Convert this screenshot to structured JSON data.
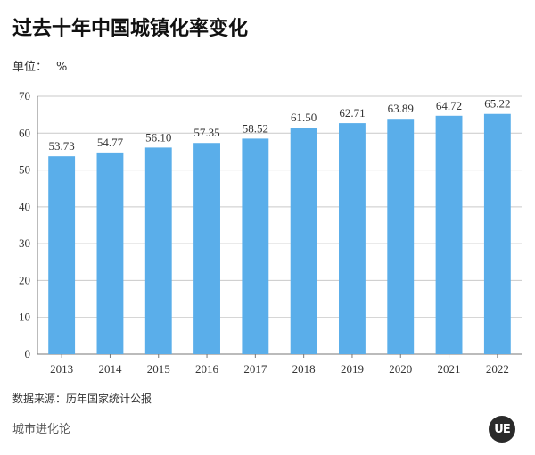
{
  "header": {
    "title": "过去十年中国城镇化率变化",
    "unit_label": "单位：",
    "unit_value": "%"
  },
  "footer": {
    "source": "数据来源：历年国家统计公报",
    "brand": "城市进化论",
    "logo_text": "UE"
  },
  "colors": {
    "bar": "#5aaeea",
    "grid": "#c9c9c9",
    "axis": "#777777"
  },
  "chart_data": {
    "type": "bar",
    "title": "过去十年中国城镇化率变化",
    "xlabel": "",
    "ylabel": "",
    "categories": [
      "2013",
      "2014",
      "2015",
      "2016",
      "2017",
      "2018",
      "2019",
      "2020",
      "2021",
      "2022"
    ],
    "values": [
      53.73,
      54.77,
      56.1,
      57.35,
      58.52,
      61.5,
      62.71,
      63.89,
      64.72,
      65.22
    ],
    "value_labels": [
      "53.73",
      "54.77",
      "56.10",
      "57.35",
      "58.52",
      "61.50",
      "62.71",
      "63.89",
      "64.72",
      "65.22"
    ],
    "ylim": [
      0,
      70
    ],
    "yticks": [
      0,
      10,
      20,
      30,
      40,
      50,
      60,
      70
    ],
    "grid": true,
    "legend": "none"
  }
}
